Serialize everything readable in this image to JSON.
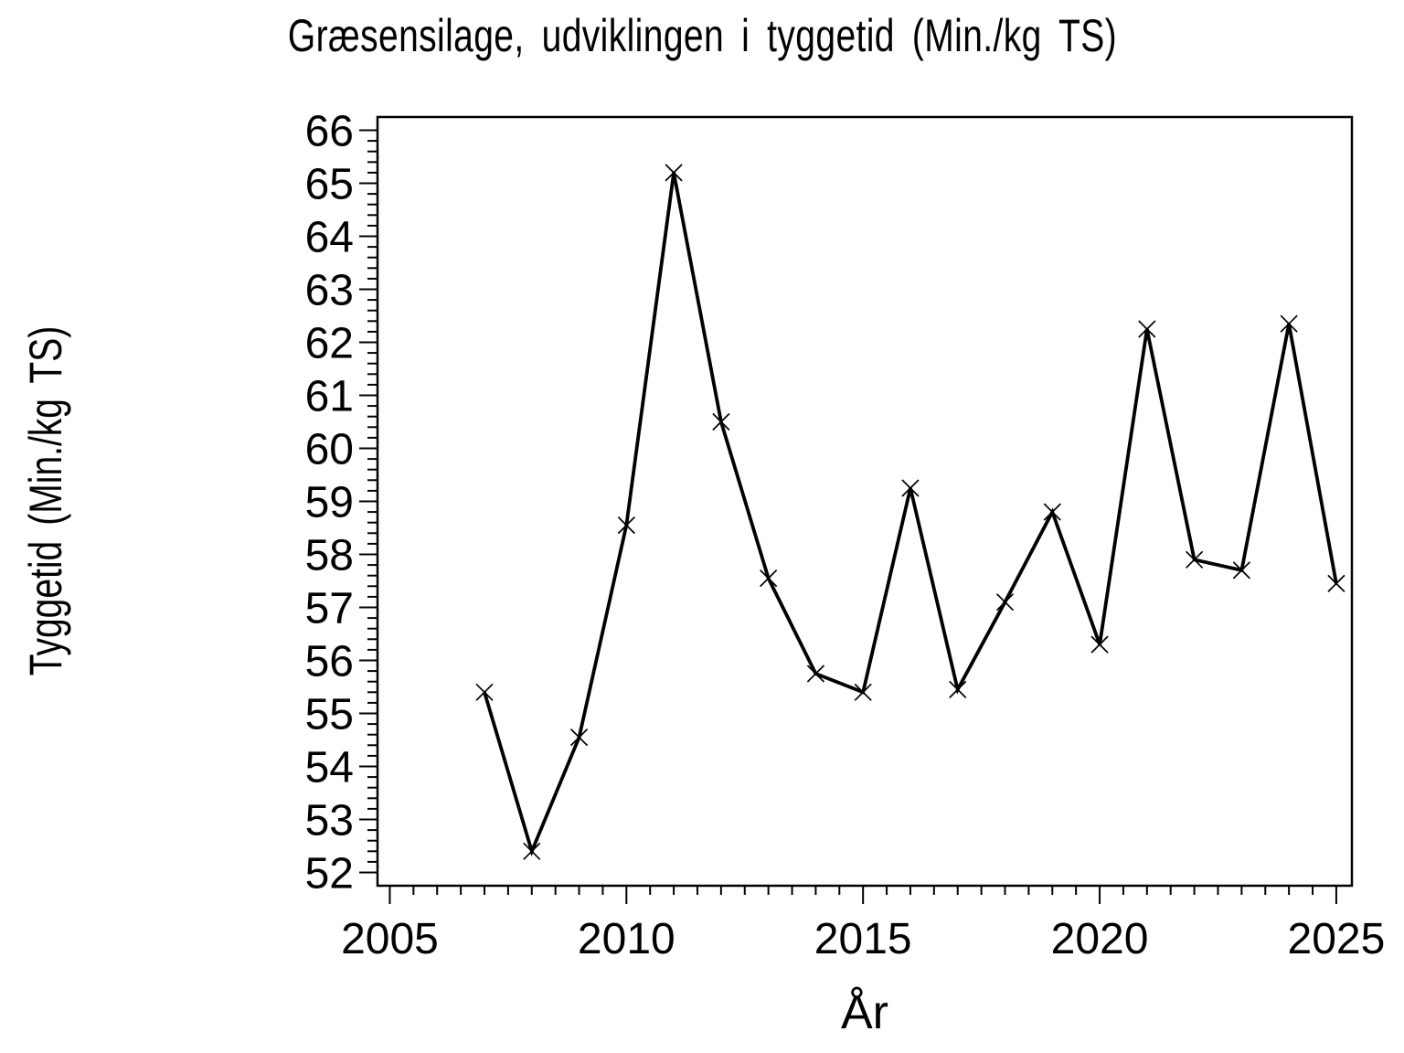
{
  "chart_data": {
    "type": "line",
    "title": "Græsensilage, udviklingen i tyggetid (Min./kg TS)",
    "xlabel": "År",
    "ylabel": "Tyggetid (Min./kg TS)",
    "x": [
      2007,
      2008,
      2009,
      2010,
      2011,
      2012,
      2013,
      2014,
      2015,
      2016,
      2017,
      2018,
      2019,
      2020,
      2021,
      2022,
      2023,
      2024,
      2025
    ],
    "series": [
      {
        "name": "Tyggetid",
        "values": [
          55.4,
          52.4,
          54.55,
          58.55,
          65.2,
          60.5,
          57.55,
          55.75,
          55.4,
          59.25,
          55.45,
          57.1,
          58.8,
          56.3,
          62.25,
          57.9,
          57.7,
          62.35,
          57.45
        ]
      }
    ],
    "xlim": [
      2004.74,
      2025.33
    ],
    "ylim": [
      51.75,
      66.25
    ],
    "xticks_major": [
      2005,
      2010,
      2015,
      2020,
      2025
    ],
    "xtick_minor_step": 0.5,
    "yticks_major": [
      52,
      53,
      54,
      55,
      56,
      57,
      58,
      59,
      60,
      61,
      62,
      63,
      64,
      65,
      66
    ],
    "ytick_minor_step": 0.2,
    "grid": false,
    "legend_position": "none",
    "marker": "x",
    "line_color": "#000000",
    "axis_color": "#000000",
    "background_color": "#ffffff"
  }
}
